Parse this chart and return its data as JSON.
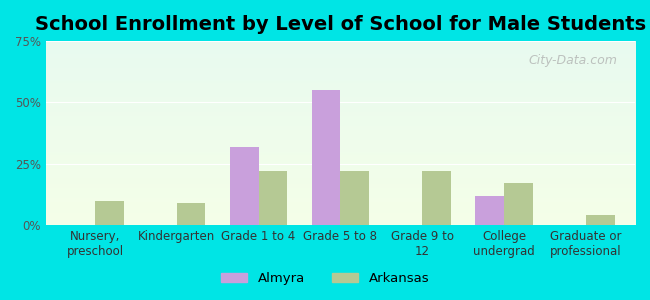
{
  "title": "School Enrollment by Level of School for Male Students",
  "categories": [
    "Nursery,\npreschool",
    "Kindergarten",
    "Grade 1 to 4",
    "Grade 5 to 8",
    "Grade 9 to\n12",
    "College\nundergrad",
    "Graduate or\nprofessional"
  ],
  "almyra": [
    0,
    0,
    32,
    55,
    0,
    12,
    0
  ],
  "arkansas": [
    10,
    9,
    22,
    22,
    22,
    17,
    4
  ],
  "almyra_color": "#c9a0dc",
  "arkansas_color": "#b5c994",
  "ylim": [
    0,
    75
  ],
  "yticks": [
    0,
    25,
    50,
    75
  ],
  "ytick_labels": [
    "0%",
    "25%",
    "50%",
    "75%"
  ],
  "bg_color": "#00e5e5",
  "bar_width": 0.35,
  "title_fontsize": 14,
  "tick_fontsize": 8.5,
  "legend_labels": [
    "Almyra",
    "Arkansas"
  ],
  "watermark": "City-Data.com"
}
